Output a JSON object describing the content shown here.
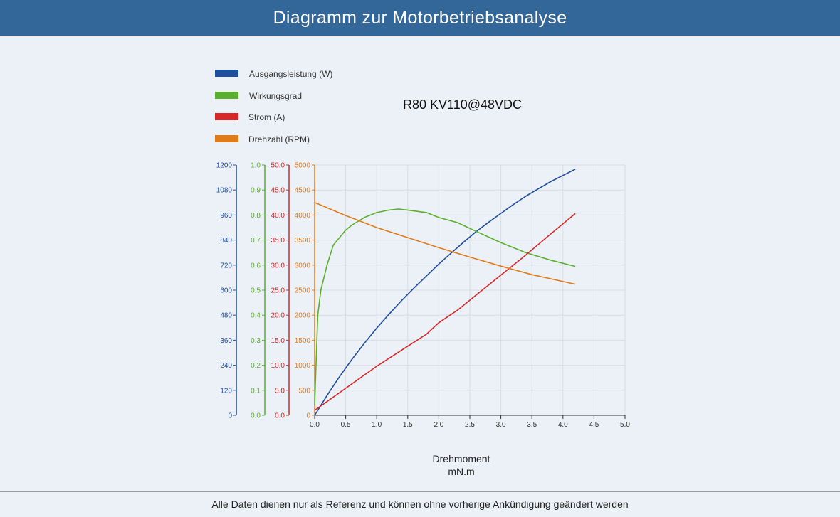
{
  "header": {
    "title": "Diagramm zur Motorbetriebsanalyse"
  },
  "footer": {
    "note": "Alle Daten dienen nur als Referenz und können ohne vorherige Ankündigung geändert werden"
  },
  "chart_data": {
    "type": "line",
    "title": "R80 KV110@48VDC",
    "xlabel": "Drehmoment",
    "xunit": "mN.m",
    "xlim": [
      0,
      5
    ],
    "xticks": [
      "0.0",
      "0.5",
      "1.0",
      "1.5",
      "2.0",
      "2.5",
      "3.0",
      "3.5",
      "4.0",
      "4.5",
      "5.0"
    ],
    "grid": true,
    "legend_position": "top-left",
    "axes": [
      {
        "series": "Ausgangsleistung (W)",
        "ylim": [
          0,
          1200
        ],
        "ticks": [
          "0",
          "120",
          "240",
          "360",
          "480",
          "600",
          "720",
          "840",
          "960",
          "1080",
          "1200"
        ],
        "color": "#1f4e9c"
      },
      {
        "series": "Wirkungsgrad",
        "ylim": [
          0,
          1.0
        ],
        "ticks": [
          "0.0",
          "0.1",
          "0.2",
          "0.3",
          "0.4",
          "0.5",
          "0.6",
          "0.7",
          "0.8",
          "0.9",
          "1.0"
        ],
        "color": "#5ab02e"
      },
      {
        "series": "Strom (A)",
        "ylim": [
          0,
          50
        ],
        "ticks": [
          "0.0",
          "5.0",
          "10.0",
          "15.0",
          "20.0",
          "25.0",
          "30.0",
          "35.0",
          "40.0",
          "45.0",
          "50.0"
        ],
        "color": "#d62828"
      },
      {
        "series": "Drehzahl (RPM)",
        "ylim": [
          0,
          5000
        ],
        "ticks": [
          "0",
          "500",
          "1000",
          "1500",
          "2000",
          "2500",
          "3000",
          "3500",
          "4000",
          "4500",
          "5000"
        ],
        "color": "#e07b1a"
      }
    ],
    "series": [
      {
        "name": "Ausgangsleistung (W)",
        "color": "#1f4e9c",
        "x": [
          0,
          0.2,
          0.4,
          0.6,
          0.8,
          1.0,
          1.2,
          1.4,
          1.6,
          1.8,
          2.0,
          2.2,
          2.4,
          2.6,
          2.8,
          3.0,
          3.2,
          3.4,
          3.6,
          3.8,
          4.0,
          4.2
        ],
        "y": [
          0,
          95,
          185,
          268,
          345,
          418,
          485,
          550,
          610,
          668,
          725,
          778,
          830,
          880,
          925,
          968,
          1010,
          1050,
          1085,
          1120,
          1150,
          1180
        ]
      },
      {
        "name": "Wirkungsgrad",
        "color": "#5ab02e",
        "x": [
          0,
          0.05,
          0.1,
          0.2,
          0.3,
          0.4,
          0.5,
          0.6,
          0.8,
          1.0,
          1.2,
          1.35,
          1.5,
          1.8,
          2.0,
          2.3,
          2.6,
          3.0,
          3.4,
          3.8,
          4.2
        ],
        "y": [
          0.04,
          0.4,
          0.5,
          0.6,
          0.68,
          0.71,
          0.74,
          0.76,
          0.79,
          0.81,
          0.82,
          0.824,
          0.82,
          0.81,
          0.79,
          0.77,
          0.735,
          0.69,
          0.65,
          0.62,
          0.595
        ]
      },
      {
        "name": "Strom (A)",
        "color": "#d62828",
        "x": [
          0,
          0.5,
          1.0,
          1.5,
          1.8,
          2.0,
          2.3,
          2.6,
          3.0,
          3.4,
          3.8,
          4.2
        ],
        "y": [
          1.0,
          5.4,
          9.8,
          13.8,
          16.2,
          18.5,
          21.0,
          24.0,
          28.0,
          32.0,
          36.2,
          40.3
        ]
      },
      {
        "name": "Drehzahl (RPM)",
        "color": "#e07b1a",
        "x": [
          0,
          0.5,
          1.0,
          1.5,
          2.0,
          2.5,
          3.0,
          3.5,
          4.2
        ],
        "y": [
          4250,
          3990,
          3750,
          3550,
          3350,
          3160,
          2980,
          2810,
          2620
        ]
      }
    ]
  }
}
